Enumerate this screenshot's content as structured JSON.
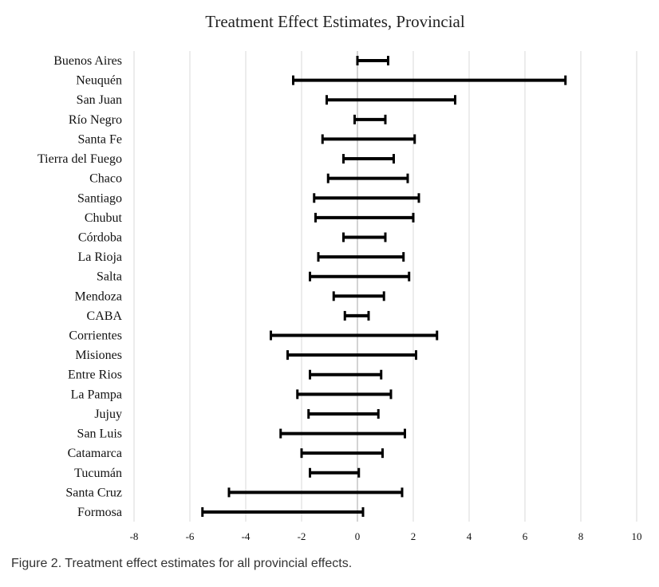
{
  "chart_data": {
    "type": "errorbar-range",
    "title": "Treatment Effect Estimates, Provincial",
    "categories": [
      "Buenos Aires",
      "Neuquén",
      "San Juan",
      "Río Negro",
      "Santa Fe",
      "Tierra del Fuego",
      "Chaco",
      "Santiago",
      "Chubut",
      "Córdoba",
      "La Rioja",
      "Salta",
      "Mendoza",
      "CABA",
      "Corrientes",
      "Misiones",
      "Entre Rios",
      "La Pampa",
      "Jujuy",
      "San Luis",
      "Catamarca",
      "Tucumán",
      "Santa Cruz",
      "Formosa"
    ],
    "series": [
      {
        "low": [
          0.0,
          -2.3,
          -1.1,
          -0.1,
          -1.25,
          -0.5,
          -1.05,
          -1.55,
          -1.5,
          -0.5,
          -1.4,
          -1.7,
          -0.85,
          -0.45,
          -3.1,
          -2.5,
          -1.7,
          -2.15,
          -1.75,
          -2.75,
          -2.0,
          -1.7,
          -4.6,
          -5.55
        ],
        "high": [
          1.1,
          7.45,
          3.5,
          1.0,
          2.05,
          1.3,
          1.8,
          2.2,
          2.0,
          1.0,
          1.65,
          1.85,
          0.95,
          0.4,
          2.85,
          2.1,
          0.85,
          1.2,
          0.75,
          1.7,
          0.9,
          0.05,
          1.6,
          0.2
        ]
      }
    ],
    "xlim": [
      -8,
      10
    ],
    "xticks": [
      "-8",
      "-6",
      "-4",
      "-2",
      "0",
      "2",
      "4",
      "6",
      "8",
      "10"
    ],
    "grid": "vertical"
  },
  "caption": "Figure 2. Treatment effect estimates for all provincial effects."
}
